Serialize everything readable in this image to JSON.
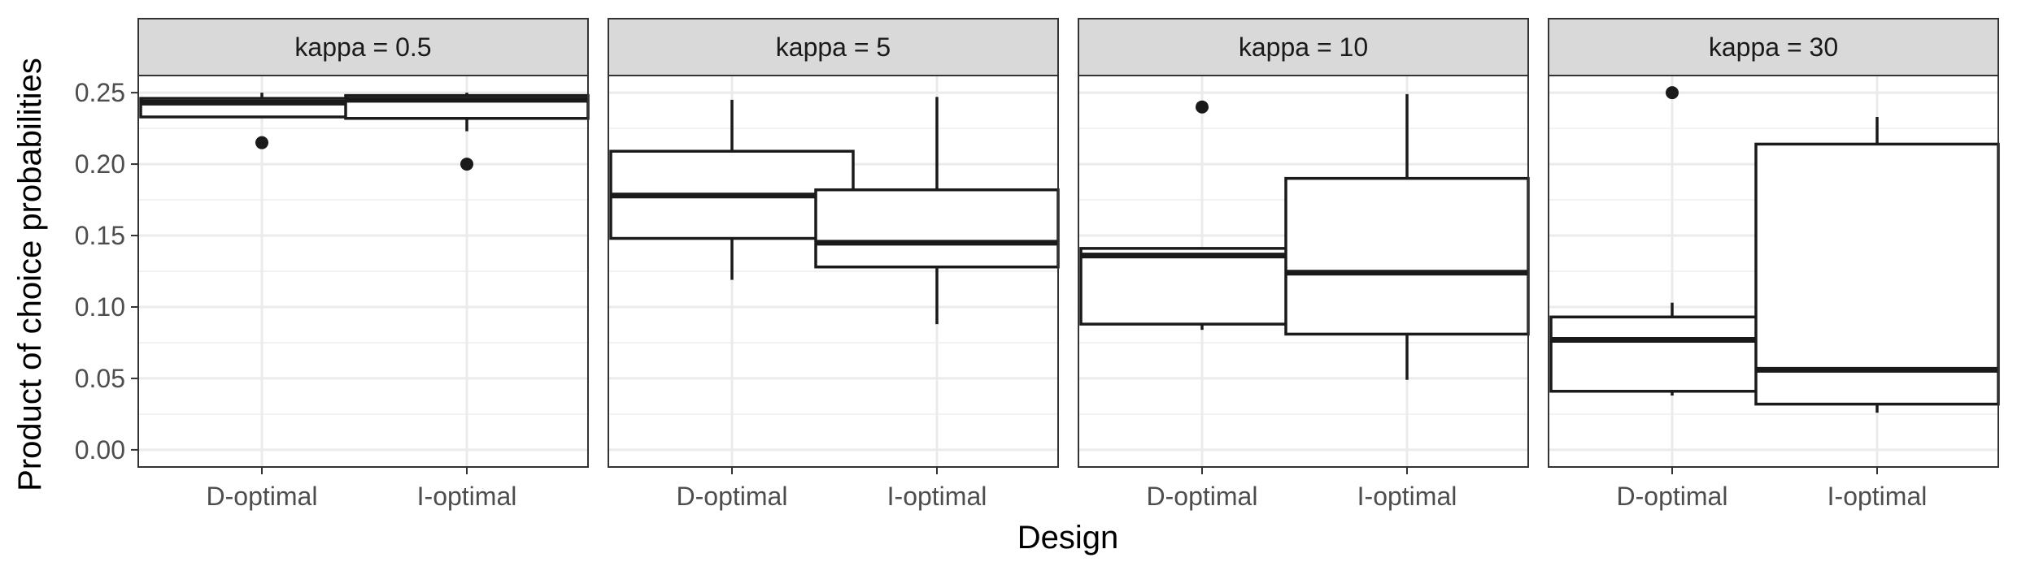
{
  "chart_data": {
    "type": "boxplot",
    "facet_variable": "kappa",
    "facets": [
      {
        "label": "kappa = 0.5",
        "boxes": [
          {
            "category": "D-optimal",
            "whisker_low": 0.233,
            "q1": 0.233,
            "median": 0.243,
            "q3": 0.246,
            "whisker_high": 0.25,
            "outliers": [
              0.215
            ]
          },
          {
            "category": "I-optimal",
            "whisker_low": 0.223,
            "q1": 0.232,
            "median": 0.245,
            "q3": 0.248,
            "whisker_high": 0.25,
            "outliers": [
              0.2
            ]
          }
        ]
      },
      {
        "label": "kappa = 5",
        "boxes": [
          {
            "category": "D-optimal",
            "whisker_low": 0.119,
            "q1": 0.148,
            "median": 0.178,
            "q3": 0.209,
            "whisker_high": 0.245,
            "outliers": []
          },
          {
            "category": "I-optimal",
            "whisker_low": 0.088,
            "q1": 0.128,
            "median": 0.145,
            "q3": 0.182,
            "whisker_high": 0.247,
            "outliers": []
          }
        ]
      },
      {
        "label": "kappa = 10",
        "boxes": [
          {
            "category": "D-optimal",
            "whisker_low": 0.084,
            "q1": 0.088,
            "median": 0.136,
            "q3": 0.141,
            "whisker_high": 0.141,
            "outliers": [
              0.24
            ]
          },
          {
            "category": "I-optimal",
            "whisker_low": 0.049,
            "q1": 0.081,
            "median": 0.124,
            "q3": 0.19,
            "whisker_high": 0.249,
            "outliers": []
          }
        ]
      },
      {
        "label": "kappa = 30",
        "boxes": [
          {
            "category": "D-optimal",
            "whisker_low": 0.038,
            "q1": 0.041,
            "median": 0.077,
            "q3": 0.093,
            "whisker_high": 0.103,
            "outliers": [
              0.25
            ]
          },
          {
            "category": "I-optimal",
            "whisker_low": 0.026,
            "q1": 0.032,
            "median": 0.056,
            "q3": 0.214,
            "whisker_high": 0.233,
            "outliers": []
          }
        ]
      }
    ],
    "categories": [
      "D-optimal",
      "I-optimal"
    ],
    "xlabel": "Design",
    "ylabel": "Product of choice probabilities",
    "ylim": [
      -0.012,
      0.262
    ],
    "yticks": [
      0.0,
      0.05,
      0.1,
      0.15,
      0.2,
      0.25
    ],
    "ytick_labels": [
      "0.00",
      "0.05",
      "0.10",
      "0.15",
      "0.20",
      "0.25"
    ],
    "grid": true,
    "colors": {
      "strip_fill": "#d9d9d9",
      "panel_border": "#333333",
      "grid_major": "#ebebeb",
      "grid_minor": "#f2f2f2",
      "box_line": "#1a1a1a",
      "text": "#1a1a1a",
      "tick_text": "#4d4d4d"
    }
  }
}
